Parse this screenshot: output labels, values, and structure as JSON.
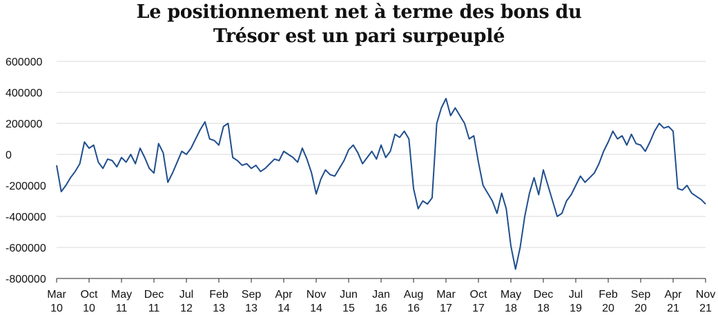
{
  "chart_data": {
    "type": "line",
    "title_lines": [
      "Le positionnement net à terme des bons du",
      "Trésor est un pari surpeuplé"
    ],
    "xlabel": "",
    "ylabel": "",
    "ylim": [
      -800000,
      600000
    ],
    "yticks": [
      {
        "value": 600000,
        "label": "600000"
      },
      {
        "value": 400000,
        "label": "400000"
      },
      {
        "value": 200000,
        "label": "200000"
      },
      {
        "value": 0,
        "label": "0"
      },
      {
        "value": -200000,
        "label": "-200000"
      },
      {
        "value": -400000,
        "label": "-400000"
      },
      {
        "value": -600000,
        "label": "-600000"
      },
      {
        "value": -800000,
        "label": "-800000"
      }
    ],
    "xlim": [
      "2010-03",
      "2021-11"
    ],
    "xticks": [
      {
        "date": "2010-03",
        "month": "Mar",
        "year": "10"
      },
      {
        "date": "2010-10",
        "month": "Oct",
        "year": "10"
      },
      {
        "date": "2011-05",
        "month": "May",
        "year": "11"
      },
      {
        "date": "2011-12",
        "month": "Dec",
        "year": "11"
      },
      {
        "date": "2012-07",
        "month": "Jul",
        "year": "12"
      },
      {
        "date": "2013-02",
        "month": "Feb",
        "year": "13"
      },
      {
        "date": "2013-09",
        "month": "Sep",
        "year": "13"
      },
      {
        "date": "2014-04",
        "month": "Apr",
        "year": "14"
      },
      {
        "date": "2014-11",
        "month": "Nov",
        "year": "14"
      },
      {
        "date": "2015-06",
        "month": "Jun",
        "year": "15"
      },
      {
        "date": "2016-01",
        "month": "Jan",
        "year": "16"
      },
      {
        "date": "2016-08",
        "month": "Aug",
        "year": "16"
      },
      {
        "date": "2017-03",
        "month": "Mar",
        "year": "17"
      },
      {
        "date": "2017-10",
        "month": "Oct",
        "year": "17"
      },
      {
        "date": "2018-05",
        "month": "May",
        "year": "18"
      },
      {
        "date": "2018-12",
        "month": "Dec",
        "year": "18"
      },
      {
        "date": "2019-07",
        "month": "Jul",
        "year": "19"
      },
      {
        "date": "2020-02",
        "month": "Feb",
        "year": "20"
      },
      {
        "date": "2020-09",
        "month": "Sep",
        "year": "20"
      },
      {
        "date": "2021-04",
        "month": "Apr",
        "year": "21"
      },
      {
        "date": "2021-11",
        "month": "Nov",
        "year": "21"
      }
    ],
    "grid": true,
    "line_color": "#1f4e8c",
    "series": [
      {
        "points": [
          [
            "2010-03",
            -70000
          ],
          [
            "2010-04",
            -240000
          ],
          [
            "2010-05",
            -200000
          ],
          [
            "2010-06",
            -150000
          ],
          [
            "2010-07",
            -110000
          ],
          [
            "2010-08",
            -60000
          ],
          [
            "2010-09",
            80000
          ],
          [
            "2010-10",
            40000
          ],
          [
            "2010-11",
            60000
          ],
          [
            "2010-12",
            -50000
          ],
          [
            "2011-01",
            -90000
          ],
          [
            "2011-02",
            -30000
          ],
          [
            "2011-03",
            -40000
          ],
          [
            "2011-04",
            -80000
          ],
          [
            "2011-05",
            -20000
          ],
          [
            "2011-06",
            -50000
          ],
          [
            "2011-07",
            0
          ],
          [
            "2011-08",
            -60000
          ],
          [
            "2011-09",
            40000
          ],
          [
            "2011-10",
            -20000
          ],
          [
            "2011-11",
            -90000
          ],
          [
            "2011-12",
            -120000
          ],
          [
            "2012-01",
            70000
          ],
          [
            "2012-02",
            10000
          ],
          [
            "2012-03",
            -180000
          ],
          [
            "2012-04",
            -120000
          ],
          [
            "2012-05",
            -50000
          ],
          [
            "2012-06",
            20000
          ],
          [
            "2012-07",
            0
          ],
          [
            "2012-08",
            40000
          ],
          [
            "2012-09",
            100000
          ],
          [
            "2012-10",
            160000
          ],
          [
            "2012-11",
            210000
          ],
          [
            "2012-12",
            100000
          ],
          [
            "2013-01",
            90000
          ],
          [
            "2013-02",
            60000
          ],
          [
            "2013-03",
            180000
          ],
          [
            "2013-04",
            200000
          ],
          [
            "2013-05",
            -20000
          ],
          [
            "2013-06",
            -40000
          ],
          [
            "2013-07",
            -70000
          ],
          [
            "2013-08",
            -60000
          ],
          [
            "2013-09",
            -90000
          ],
          [
            "2013-10",
            -70000
          ],
          [
            "2013-11",
            -110000
          ],
          [
            "2013-12",
            -90000
          ],
          [
            "2014-01",
            -60000
          ],
          [
            "2014-02",
            -30000
          ],
          [
            "2014-03",
            -40000
          ],
          [
            "2014-04",
            20000
          ],
          [
            "2014-05",
            0
          ],
          [
            "2014-06",
            -20000
          ],
          [
            "2014-07",
            -50000
          ],
          [
            "2014-08",
            40000
          ],
          [
            "2014-09",
            -30000
          ],
          [
            "2014-10",
            -120000
          ],
          [
            "2014-11",
            -255000
          ],
          [
            "2014-12",
            -160000
          ],
          [
            "2015-01",
            -100000
          ],
          [
            "2015-02",
            -130000
          ],
          [
            "2015-03",
            -140000
          ],
          [
            "2015-04",
            -90000
          ],
          [
            "2015-05",
            -40000
          ],
          [
            "2015-06",
            30000
          ],
          [
            "2015-07",
            60000
          ],
          [
            "2015-08",
            10000
          ],
          [
            "2015-09",
            -60000
          ],
          [
            "2015-10",
            -20000
          ],
          [
            "2015-11",
            20000
          ],
          [
            "2015-12",
            -30000
          ],
          [
            "2016-01",
            60000
          ],
          [
            "2016-02",
            -20000
          ],
          [
            "2016-03",
            20000
          ],
          [
            "2016-04",
            130000
          ],
          [
            "2016-05",
            110000
          ],
          [
            "2016-06",
            150000
          ],
          [
            "2016-07",
            100000
          ],
          [
            "2016-08",
            -220000
          ],
          [
            "2016-09",
            -350000
          ],
          [
            "2016-10",
            -300000
          ],
          [
            "2016-11",
            -320000
          ],
          [
            "2016-12",
            -280000
          ],
          [
            "2017-01",
            200000
          ],
          [
            "2017-02",
            300000
          ],
          [
            "2017-03",
            360000
          ],
          [
            "2017-04",
            250000
          ],
          [
            "2017-05",
            300000
          ],
          [
            "2017-06",
            250000
          ],
          [
            "2017-07",
            200000
          ],
          [
            "2017-08",
            100000
          ],
          [
            "2017-09",
            120000
          ],
          [
            "2017-10",
            -50000
          ],
          [
            "2017-11",
            -200000
          ],
          [
            "2017-12",
            -250000
          ],
          [
            "2018-01",
            -300000
          ],
          [
            "2018-02",
            -380000
          ],
          [
            "2018-03",
            -250000
          ],
          [
            "2018-04",
            -350000
          ],
          [
            "2018-05",
            -590000
          ],
          [
            "2018-06",
            -740000
          ],
          [
            "2018-07",
            -600000
          ],
          [
            "2018-08",
            -400000
          ],
          [
            "2018-09",
            -250000
          ],
          [
            "2018-10",
            -150000
          ],
          [
            "2018-11",
            -260000
          ],
          [
            "2018-12",
            -100000
          ],
          [
            "2019-01",
            -200000
          ],
          [
            "2019-02",
            -300000
          ],
          [
            "2019-03",
            -400000
          ],
          [
            "2019-04",
            -380000
          ],
          [
            "2019-05",
            -300000
          ],
          [
            "2019-06",
            -260000
          ],
          [
            "2019-07",
            -200000
          ],
          [
            "2019-08",
            -140000
          ],
          [
            "2019-09",
            -180000
          ],
          [
            "2019-10",
            -150000
          ],
          [
            "2019-11",
            -120000
          ],
          [
            "2019-12",
            -60000
          ],
          [
            "2020-01",
            20000
          ],
          [
            "2020-02",
            80000
          ],
          [
            "2020-03",
            150000
          ],
          [
            "2020-04",
            100000
          ],
          [
            "2020-05",
            120000
          ],
          [
            "2020-06",
            60000
          ],
          [
            "2020-07",
            130000
          ],
          [
            "2020-08",
            70000
          ],
          [
            "2020-09",
            60000
          ],
          [
            "2020-10",
            20000
          ],
          [
            "2020-11",
            80000
          ],
          [
            "2020-12",
            150000
          ],
          [
            "2021-01",
            200000
          ],
          [
            "2021-02",
            170000
          ],
          [
            "2021-03",
            180000
          ],
          [
            "2021-04",
            150000
          ],
          [
            "2021-05",
            -220000
          ],
          [
            "2021-06",
            -230000
          ],
          [
            "2021-07",
            -200000
          ],
          [
            "2021-08",
            -250000
          ],
          [
            "2021-09",
            -270000
          ],
          [
            "2021-10",
            -290000
          ],
          [
            "2021-11",
            -320000
          ]
        ]
      }
    ]
  }
}
